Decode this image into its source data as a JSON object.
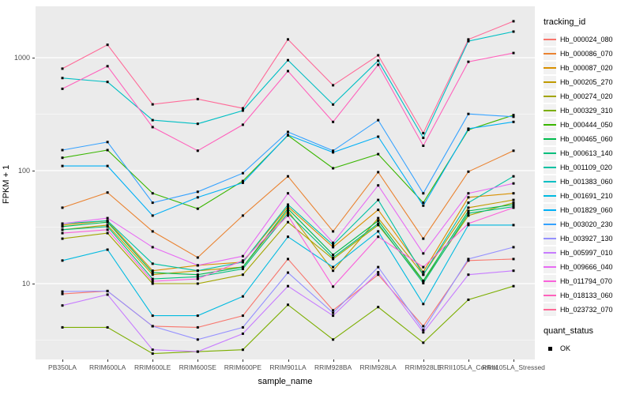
{
  "chart_data": {
    "type": "line",
    "title": "",
    "xlabel": "sample_name",
    "ylabel": "FPKM + 1",
    "y_scale": "log10",
    "ylim": [
      2.1,
      2850
    ],
    "y_ticks": [
      10,
      100,
      1000
    ],
    "y_minor_ticks": [
      3.1623,
      31.623,
      316.23
    ],
    "grid": true,
    "legend": {
      "title": "tracking_id",
      "position": "right"
    },
    "legend2": {
      "title": "quant_status",
      "items": [
        {
          "label": "OK",
          "symbol": "black-square"
        }
      ]
    },
    "marker": {
      "shape": "square",
      "color": "#000000",
      "size": 3
    },
    "categories": [
      "PB350LA",
      "RRIM600LA",
      "RRIM600LE",
      "RRIM600SE",
      "RRIM600PE",
      "RRIM901LA",
      "RRIM928BA",
      "RRIM928LA",
      "RRIM928LE",
      "RRII105LA_Control",
      "RRII105LA_Stressed"
    ],
    "series": [
      {
        "name": "Hb_000024_080",
        "color": "#F8766D",
        "values": [
          8.1,
          8.6,
          4.2,
          4.1,
          5.2,
          16.5,
          5.8,
          12,
          4.2,
          16,
          16.5
        ]
      },
      {
        "name": "Hb_000086_070",
        "color": "#EA8331",
        "values": [
          47,
          64,
          29,
          17,
          40,
          89,
          29,
          97,
          25,
          98,
          150
        ]
      },
      {
        "name": "Hb_000087_020",
        "color": "#D89000",
        "values": [
          33,
          36,
          13,
          14.5,
          15.5,
          48,
          21,
          45,
          12.7,
          58,
          63
        ]
      },
      {
        "name": "Hb_000205_270",
        "color": "#C09B00",
        "values": [
          30,
          33,
          12,
          13,
          14,
          44,
          13,
          38,
          12,
          47,
          55
        ]
      },
      {
        "name": "Hb_000274_020",
        "color": "#A3A500",
        "values": [
          25,
          28,
          10,
          10,
          12,
          35,
          16.5,
          33,
          10.5,
          40,
          52
        ]
      },
      {
        "name": "Hb_000329_310",
        "color": "#7CAE00",
        "values": [
          4.1,
          4.1,
          2.4,
          2.5,
          2.6,
          6.5,
          3.2,
          6.2,
          3.0,
          7.2,
          9.5
        ]
      },
      {
        "name": "Hb_000444_050",
        "color": "#39B600",
        "values": [
          130,
          152,
          63,
          46,
          81,
          205,
          105,
          140,
          52,
          230,
          310
        ]
      },
      {
        "name": "Hb_000465_060",
        "color": "#00BB4E",
        "values": [
          32,
          35,
          12.5,
          12,
          14,
          46,
          18,
          36,
          10.6,
          44,
          50
        ]
      },
      {
        "name": "Hb_000613_140",
        "color": "#00BF7D",
        "values": [
          30,
          32,
          11,
          11.5,
          13.5,
          42,
          17,
          34,
          10.1,
          42,
          48
        ]
      },
      {
        "name": "Hb_001109_020",
        "color": "#00C1A3",
        "values": [
          34,
          36,
          15,
          13,
          15.5,
          50,
          22,
          55,
          12,
          52,
          89
        ]
      },
      {
        "name": "Hb_001383_060",
        "color": "#00BFC4",
        "values": [
          660,
          610,
          280,
          260,
          340,
          950,
          385,
          940,
          195,
          1400,
          1700
        ]
      },
      {
        "name": "Hb_001691_210",
        "color": "#00BAE0",
        "values": [
          16,
          20,
          5.2,
          5.2,
          7.7,
          26,
          14,
          29,
          6.6,
          33,
          33
        ]
      },
      {
        "name": "Hb_001829_060",
        "color": "#00B0F6",
        "values": [
          110,
          110,
          40,
          58,
          78,
          207,
          145,
          200,
          49,
          235,
          270
        ]
      },
      {
        "name": "Hb_003020_230",
        "color": "#35A2FF",
        "values": [
          152,
          179,
          52,
          65,
          95,
          220,
          150,
          280,
          63,
          318,
          300
        ]
      },
      {
        "name": "Hb_003927_130",
        "color": "#9590FF",
        "values": [
          8.5,
          8.6,
          4.2,
          3.2,
          4.1,
          12.5,
          5.5,
          14,
          3.9,
          16.5,
          21
        ]
      },
      {
        "name": "Hb_005997_010",
        "color": "#C77CFF",
        "values": [
          6.4,
          8.0,
          2.6,
          2.5,
          3.6,
          9.5,
          5.2,
          12.6,
          3.7,
          12,
          13
        ]
      },
      {
        "name": "Hb_009666_040",
        "color": "#E76BF3",
        "values": [
          34,
          38,
          21,
          14.5,
          17.5,
          63,
          23,
          74,
          18.5,
          63,
          77
        ]
      },
      {
        "name": "Hb_011794_070",
        "color": "#FA62DB",
        "values": [
          28,
          30,
          10.5,
          11,
          16,
          40,
          9.4,
          26,
          14,
          34,
          47
        ]
      },
      {
        "name": "Hb_018133_060",
        "color": "#FF62BC",
        "values": [
          530,
          840,
          243,
          150,
          255,
          760,
          270,
          865,
          166,
          920,
          1100
        ]
      },
      {
        "name": "Hb_023732_070",
        "color": "#FF6A98",
        "values": [
          800,
          1300,
          386,
          430,
          356,
          1450,
          570,
          1050,
          215,
          1450,
          2100
        ]
      }
    ]
  },
  "panel": {
    "bg": "#EBEBEB",
    "grid_color": "#FFFFFF",
    "tick_color": "#333333",
    "tick_label_color": "#4D4D4D"
  }
}
